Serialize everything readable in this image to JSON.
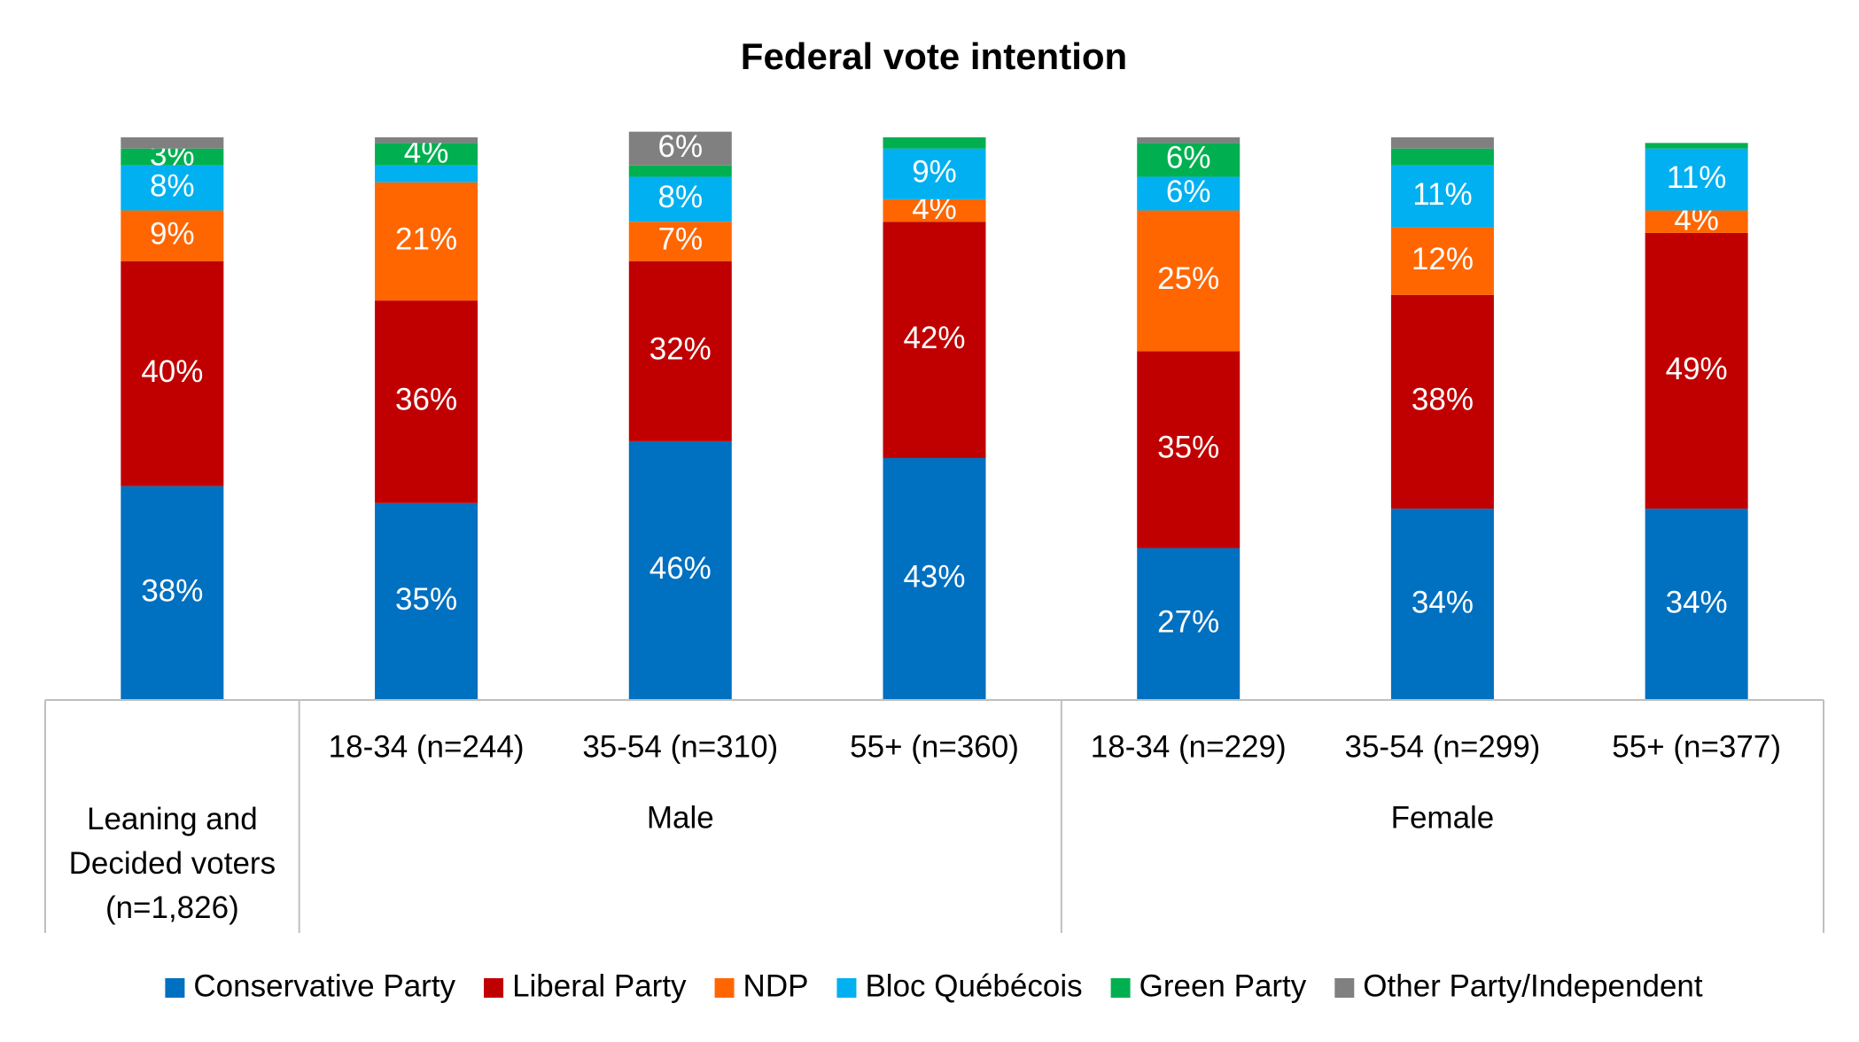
{
  "chart_data": {
    "type": "stacked_bar",
    "title": "Federal vote intention",
    "categories": [
      "Leaning and Decided voters (n=1,826)",
      "18-34 (n=244)",
      "35-54 (n=310)",
      "55+ (n=360)",
      "18-34 (n=229)",
      "35-54 (n=299)",
      "55+ (n=377)"
    ],
    "category_groups": [
      {
        "name": "Male",
        "first": 1,
        "count": 3
      },
      {
        "name": "Female",
        "first": 4,
        "count": 3
      }
    ],
    "ylim": [
      0,
      100
    ],
    "series": [
      {
        "name": "Conservative Party",
        "color": "#0070c0",
        "values": [
          38,
          35,
          46,
          43,
          27,
          34,
          34
        ],
        "value_labels": [
          "38%",
          "35%",
          "46%",
          "43%",
          "27%",
          "34%",
          "34%"
        ]
      },
      {
        "name": "Liberal Party",
        "color": "#c00000",
        "values": [
          40,
          36,
          32,
          42,
          35,
          38,
          49
        ],
        "value_labels": [
          "40%",
          "36%",
          "32%",
          "42%",
          "35%",
          "38%",
          "49%"
        ]
      },
      {
        "name": "NDP",
        "color": "#ff6600",
        "values": [
          9,
          21,
          7,
          4,
          25,
          12,
          4
        ],
        "value_labels": [
          "9%",
          "21%",
          "7%",
          "4%",
          "25%",
          "12%",
          "4%"
        ]
      },
      {
        "name": "Bloc Québécois",
        "color": "#00b0f0",
        "values": [
          8,
          3,
          8,
          9,
          6,
          11,
          11
        ],
        "value_labels": [
          "8%",
          null,
          "8%",
          "9%",
          "6%",
          "11%",
          "11%"
        ]
      },
      {
        "name": "Green Party",
        "color": "#00b050",
        "values": [
          3,
          4,
          2,
          2,
          6,
          3,
          1
        ],
        "value_labels": [
          "3%",
          "4%",
          null,
          null,
          "6%",
          null,
          null
        ]
      },
      {
        "name": "Other Party/Independent",
        "color": "#808080",
        "values": [
          2,
          1,
          6,
          0,
          1,
          2,
          0
        ],
        "value_labels": [
          null,
          null,
          "6%",
          null,
          null,
          null,
          null
        ]
      }
    ]
  }
}
